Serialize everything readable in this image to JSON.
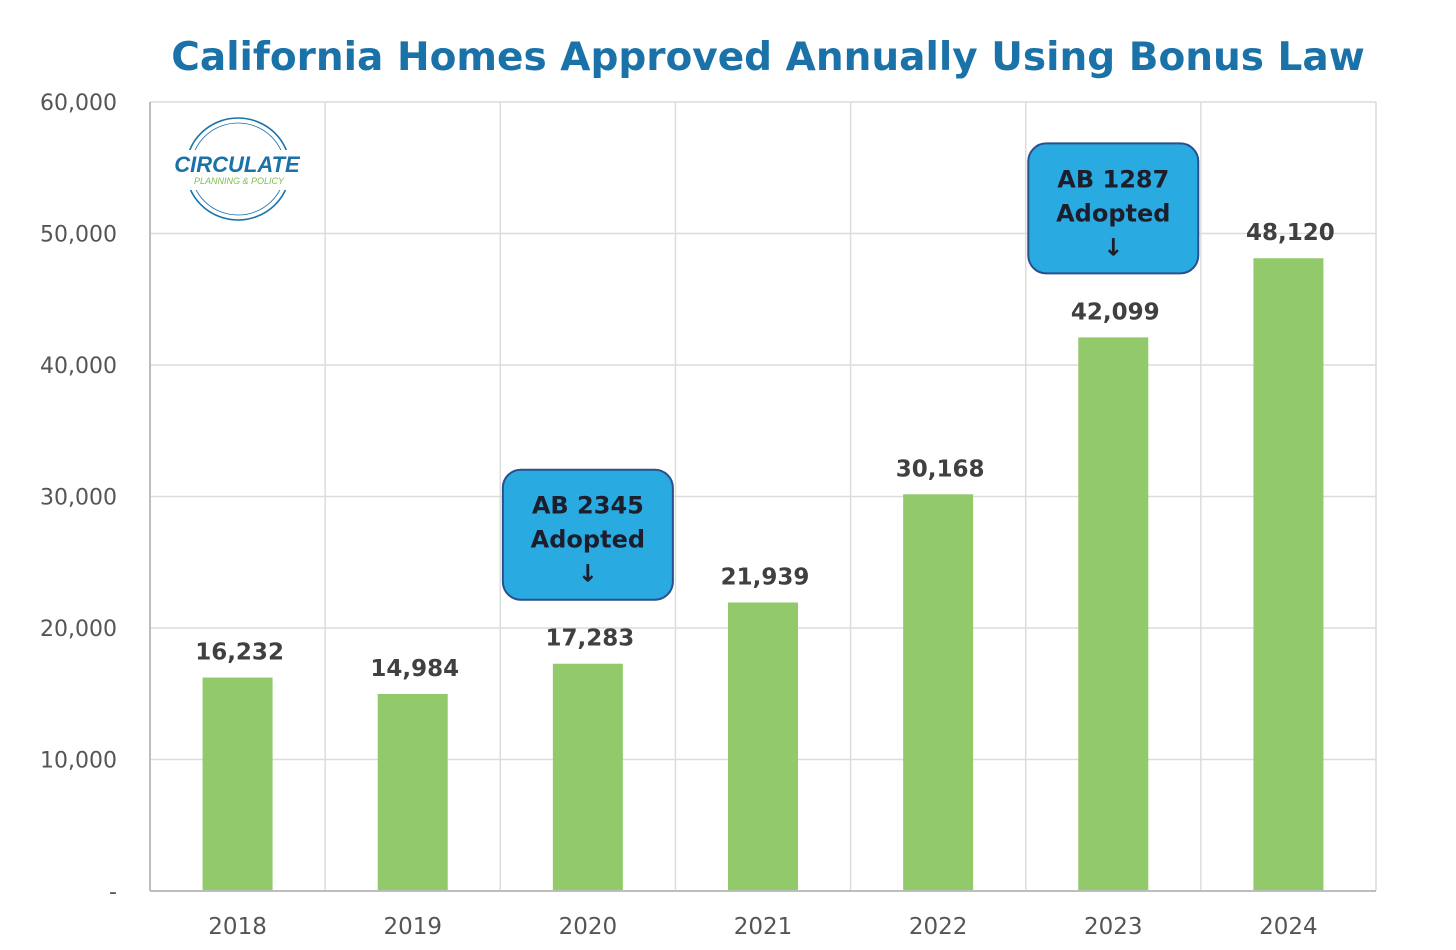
{
  "chart_data": {
    "type": "bar",
    "title": "California Homes Approved Annually Using Bonus Law",
    "categories": [
      "2018",
      "2019",
      "2020",
      "2021",
      "2022",
      "2023",
      "2024"
    ],
    "values": [
      16232,
      14984,
      17283,
      21939,
      30168,
      42099,
      48120
    ],
    "value_labels": [
      "16,232",
      "14,984",
      "17,283",
      "21,939",
      "30,168",
      "42,099",
      "48,120"
    ],
    "ylim": [
      0,
      60000
    ],
    "yticks": [
      0,
      10000,
      20000,
      30000,
      40000,
      50000,
      60000
    ],
    "ytick_labels": [
      "-",
      "10,000",
      "20,000",
      "30,000",
      "40,000",
      "50,000",
      "60,000"
    ],
    "xlabel": "",
    "ylabel": "",
    "grid": true,
    "bar_color": "#92c96a",
    "annotations": [
      {
        "category": "2020",
        "lines": [
          "AB 2345",
          "Adopted",
          "↓"
        ]
      },
      {
        "category": "2023",
        "lines": [
          "AB 1287",
          "Adopted",
          "↓"
        ]
      }
    ]
  },
  "logo": {
    "main": "CIRCULATE",
    "sub": "PLANNING & POLICY"
  },
  "colors": {
    "title": "#1a72a8",
    "callout_fill": "#29abe2",
    "callout_stroke": "#2a4f8c",
    "grid": "#dcdcdc",
    "axis": "#bdbdbd"
  }
}
